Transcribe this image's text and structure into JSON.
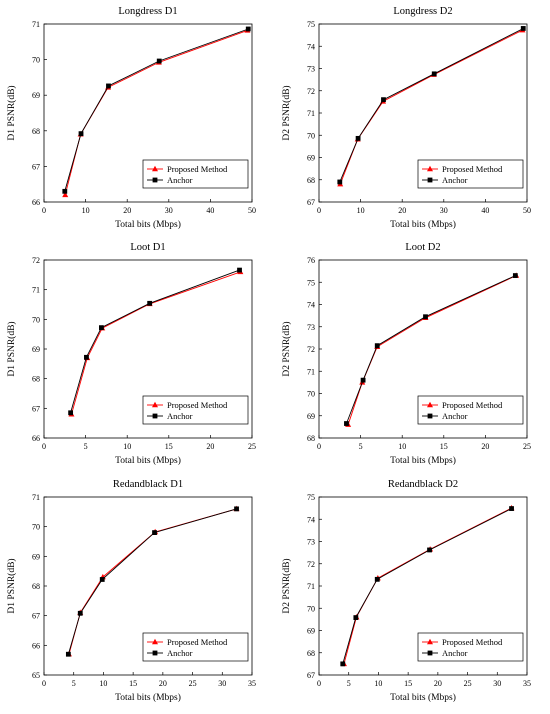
{
  "colors": {
    "proposed": "#ff0000",
    "anchor": "#000000",
    "axis": "#000000",
    "legend_border": "#000000"
  },
  "chart_data": [
    {
      "type": "line",
      "title": "Longdress D1",
      "xlabel": "Total bits (Mbps)",
      "ylabel": "D1 PSNR(dB)",
      "xlim": [
        0,
        50
      ],
      "ylim": [
        66,
        71
      ],
      "xticks": [
        "0",
        "10",
        "20",
        "30",
        "40",
        "50"
      ],
      "yticks": [
        "66",
        "67",
        "68",
        "69",
        "70",
        "71"
      ],
      "legend_position": "lower-right",
      "grid": false,
      "series": [
        {
          "name": "Proposed Method",
          "marker": "triangle",
          "color": "#ff0000",
          "x": [
            5.1,
            8.8,
            15.4,
            27.6,
            48.9
          ],
          "y": [
            66.2,
            67.9,
            69.22,
            69.92,
            70.82
          ]
        },
        {
          "name": "Anchor",
          "marker": "square",
          "color": "#000000",
          "x": [
            5.0,
            8.9,
            15.5,
            27.7,
            49.1
          ],
          "y": [
            66.3,
            67.92,
            69.26,
            69.96,
            70.86
          ]
        }
      ]
    },
    {
      "type": "line",
      "title": "Longdress D2",
      "xlabel": "Total bits (Mbps)",
      "ylabel": "D2 PSNR(dB)",
      "xlim": [
        0,
        50
      ],
      "ylim": [
        67,
        75
      ],
      "xticks": [
        "0",
        "10",
        "20",
        "30",
        "40",
        "50"
      ],
      "yticks": [
        "67",
        "68",
        "69",
        "70",
        "71",
        "72",
        "73",
        "74",
        "75"
      ],
      "legend_position": "lower-right",
      "grid": false,
      "series": [
        {
          "name": "Proposed Method",
          "marker": "triangle",
          "color": "#ff0000",
          "x": [
            5.1,
            9.3,
            15.4,
            27.6,
            48.9
          ],
          "y": [
            67.8,
            69.82,
            71.52,
            72.72,
            74.72
          ]
        },
        {
          "name": "Anchor",
          "marker": "square",
          "color": "#000000",
          "x": [
            5.0,
            9.4,
            15.5,
            27.7,
            49.1
          ],
          "y": [
            67.9,
            69.86,
            71.6,
            72.76,
            74.8
          ]
        }
      ]
    },
    {
      "type": "line",
      "title": "Loot D1",
      "xlabel": "Total bits (Mbps)",
      "ylabel": "D1 PSNR(dB)",
      "xlim": [
        0,
        25
      ],
      "ylim": [
        66,
        72
      ],
      "xticks": [
        "0",
        "5",
        "10",
        "15",
        "20",
        "25"
      ],
      "yticks": [
        "66",
        "67",
        "68",
        "69",
        "70",
        "71",
        "72"
      ],
      "legend_position": "lower-right",
      "grid": false,
      "series": [
        {
          "name": "Proposed Method",
          "marker": "triangle",
          "color": "#ff0000",
          "x": [
            3.3,
            5.2,
            7.0,
            12.7,
            23.6
          ],
          "y": [
            66.8,
            68.7,
            69.7,
            70.52,
            71.6
          ]
        },
        {
          "name": "Anchor",
          "marker": "square",
          "color": "#000000",
          "x": [
            3.2,
            5.1,
            6.9,
            12.7,
            23.5
          ],
          "y": [
            66.85,
            68.72,
            69.72,
            70.54,
            71.66
          ]
        }
      ]
    },
    {
      "type": "line",
      "title": "Loot D2",
      "xlabel": "Total bits (Mbps)",
      "ylabel": "D2 PSNR(dB)",
      "xlim": [
        0,
        25
      ],
      "ylim": [
        68,
        76
      ],
      "xticks": [
        "0",
        "5",
        "10",
        "15",
        "20",
        "25"
      ],
      "yticks": [
        "68",
        "69",
        "70",
        "71",
        "72",
        "73",
        "74",
        "75",
        "76"
      ],
      "legend_position": "lower-right",
      "grid": false,
      "series": [
        {
          "name": "Proposed Method",
          "marker": "triangle",
          "color": "#ff0000",
          "x": [
            3.5,
            5.2,
            7.0,
            12.8,
            23.7
          ],
          "y": [
            68.6,
            70.5,
            72.1,
            73.4,
            75.3
          ]
        },
        {
          "name": "Anchor",
          "marker": "square",
          "color": "#000000",
          "x": [
            3.3,
            5.3,
            7.0,
            12.8,
            23.6
          ],
          "y": [
            68.65,
            70.6,
            72.15,
            73.45,
            75.3
          ]
        }
      ]
    },
    {
      "type": "line",
      "title": "Redandblack D1",
      "xlabel": "Total bits (Mbps)",
      "ylabel": "D1 PSNR(dB)",
      "xlim": [
        0,
        35
      ],
      "ylim": [
        65,
        71
      ],
      "xticks": [
        "0",
        "5",
        "10",
        "15",
        "20",
        "25",
        "30",
        "35"
      ],
      "yticks": [
        "65",
        "66",
        "67",
        "68",
        "69",
        "70",
        "71"
      ],
      "legend_position": "lower-right",
      "grid": false,
      "series": [
        {
          "name": "Proposed Method",
          "marker": "triangle",
          "color": "#ff0000",
          "x": [
            4.2,
            6.1,
            9.9,
            18.7,
            32.4
          ],
          "y": [
            65.7,
            67.1,
            68.3,
            69.82,
            70.6
          ]
        },
        {
          "name": "Anchor",
          "marker": "square",
          "color": "#000000",
          "x": [
            4.1,
            6.1,
            9.8,
            18.6,
            32.4
          ],
          "y": [
            65.7,
            67.08,
            68.22,
            69.8,
            70.6
          ]
        }
      ]
    },
    {
      "type": "line",
      "title": "Redandblack D2",
      "xlabel": "Total bits (Mbps)",
      "ylabel": "D2 PSNR(dB)",
      "xlim": [
        0,
        35
      ],
      "ylim": [
        67,
        75
      ],
      "xticks": [
        "0",
        "5",
        "10",
        "15",
        "20",
        "25",
        "30",
        "35"
      ],
      "yticks": [
        "67",
        "68",
        "69",
        "70",
        "71",
        "72",
        "73",
        "74",
        "75"
      ],
      "legend_position": "lower-right",
      "grid": false,
      "series": [
        {
          "name": "Proposed Method",
          "marker": "triangle",
          "color": "#ff0000",
          "x": [
            4.2,
            6.3,
            9.9,
            18.7,
            32.4
          ],
          "y": [
            67.5,
            69.6,
            71.35,
            72.65,
            74.5
          ]
        },
        {
          "name": "Anchor",
          "marker": "square",
          "color": "#000000",
          "x": [
            4.0,
            6.2,
            9.8,
            18.6,
            32.4
          ],
          "y": [
            67.5,
            69.58,
            71.3,
            72.62,
            74.48
          ]
        }
      ]
    }
  ]
}
